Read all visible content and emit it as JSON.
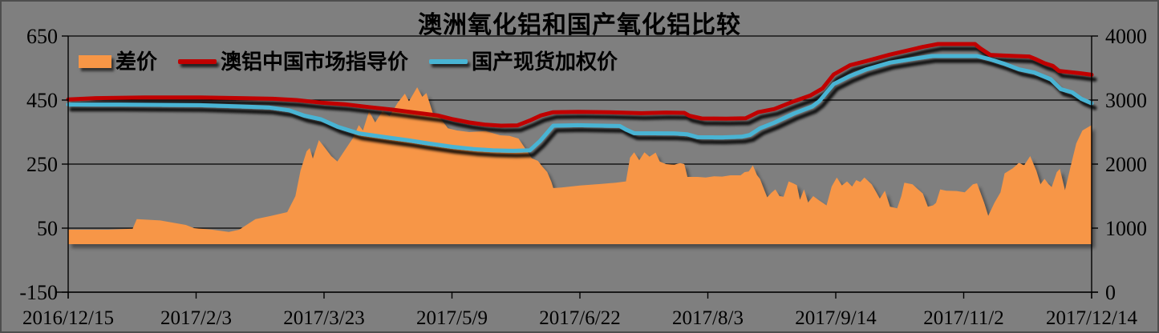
{
  "title": "澳洲氧化铝和国产氧化铝比较",
  "colors": {
    "background": "#7F7F7F",
    "border": "#4E4E4E",
    "gridline": "#000000",
    "axis": "#000000",
    "text": "#000000",
    "spread_area": "#F79646",
    "au_guide_line": "#C00000",
    "domestic_line": "#48B4D4"
  },
  "chart_data": {
    "type": "area+line combo",
    "title": "澳洲氧化铝和国产氧化铝比较",
    "grid": true,
    "legend_position": "top-left",
    "x_labels": [
      "2016/12/15",
      "2017/2/3",
      "2017/3/23",
      "2017/5/9",
      "2017/6/22",
      "2017/8/3",
      "2017/9/14",
      "2017/11/2",
      "2017/12/14"
    ],
    "left_axis": {
      "min": -150,
      "max": 650,
      "ticks": [
        650,
        450,
        250,
        50,
        -150
      ]
    },
    "right_axis": {
      "min": 0,
      "max": 4000,
      "ticks": [
        4000,
        3000,
        2000,
        1000,
        0
      ]
    },
    "series": [
      {
        "name": "差价",
        "id": "spread",
        "type": "area",
        "axis": "left",
        "color": "#F79646",
        "points": [
          [
            0,
            45
          ],
          [
            3.9,
            45
          ],
          [
            6.3,
            48
          ],
          [
            6.7,
            78
          ],
          [
            9.0,
            74
          ],
          [
            11.5,
            60
          ],
          [
            12.3,
            50
          ],
          [
            14.1,
            45
          ],
          [
            15.7,
            38
          ],
          [
            16.7,
            45
          ],
          [
            18.3,
            78
          ],
          [
            19.8,
            88
          ],
          [
            21.4,
            100
          ],
          [
            22.2,
            150
          ],
          [
            22.7,
            230
          ],
          [
            23.3,
            290
          ],
          [
            23.6,
            300
          ],
          [
            23.9,
            267
          ],
          [
            24.5,
            325
          ],
          [
            25.1,
            300
          ],
          [
            25.7,
            275
          ],
          [
            26.3,
            258
          ],
          [
            27.0,
            292
          ],
          [
            27.8,
            330
          ],
          [
            28.4,
            372
          ],
          [
            28.8,
            355
          ],
          [
            29.4,
            415
          ],
          [
            30.0,
            380
          ],
          [
            30.7,
            415
          ],
          [
            31.4,
            400
          ],
          [
            32.2,
            442
          ],
          [
            32.9,
            470
          ],
          [
            33.3,
            446
          ],
          [
            34.1,
            490
          ],
          [
            34.6,
            460
          ],
          [
            35.0,
            472
          ],
          [
            35.7,
            402
          ],
          [
            36.4,
            392
          ],
          [
            37.1,
            362
          ],
          [
            38.0,
            355
          ],
          [
            39.2,
            350
          ],
          [
            40.8,
            353
          ],
          [
            42.2,
            340
          ],
          [
            43.1,
            338
          ],
          [
            44.0,
            330
          ],
          [
            45.3,
            268
          ],
          [
            45.9,
            260
          ],
          [
            46.3,
            243
          ],
          [
            46.8,
            225
          ],
          [
            47.2,
            195
          ],
          [
            47.4,
            175
          ],
          [
            48.2,
            177
          ],
          [
            50.0,
            183
          ],
          [
            52.1,
            188
          ],
          [
            53.5,
            192
          ],
          [
            54.5,
            196
          ],
          [
            54.9,
            270
          ],
          [
            55.3,
            287
          ],
          [
            55.8,
            262
          ],
          [
            56.3,
            287
          ],
          [
            56.8,
            273
          ],
          [
            57.4,
            286
          ],
          [
            57.8,
            258
          ],
          [
            58.4,
            250
          ],
          [
            59.2,
            248
          ],
          [
            59.8,
            253
          ],
          [
            60.2,
            250
          ],
          [
            60.5,
            210
          ],
          [
            61.5,
            210
          ],
          [
            62.3,
            208
          ],
          [
            63.1,
            212
          ],
          [
            63.9,
            211
          ],
          [
            64.7,
            215
          ],
          [
            65.7,
            215
          ],
          [
            66.1,
            225
          ],
          [
            66.5,
            227
          ],
          [
            66.9,
            246
          ],
          [
            67.3,
            216
          ],
          [
            67.6,
            203
          ],
          [
            68.0,
            170
          ],
          [
            68.3,
            146
          ],
          [
            68.7,
            160
          ],
          [
            69.1,
            171
          ],
          [
            69.5,
            150
          ],
          [
            69.9,
            148
          ],
          [
            70.4,
            196
          ],
          [
            70.9,
            189
          ],
          [
            71.2,
            184
          ],
          [
            71.5,
            138
          ],
          [
            71.9,
            171
          ],
          [
            72.3,
            130
          ],
          [
            72.8,
            150
          ],
          [
            73.4,
            136
          ],
          [
            74.1,
            121
          ],
          [
            74.6,
            180
          ],
          [
            75.1,
            208
          ],
          [
            75.6,
            183
          ],
          [
            76.1,
            196
          ],
          [
            76.6,
            180
          ],
          [
            77.0,
            200
          ],
          [
            77.4,
            194
          ],
          [
            77.8,
            208
          ],
          [
            78.5,
            187
          ],
          [
            78.9,
            165
          ],
          [
            79.3,
            142
          ],
          [
            79.8,
            167
          ],
          [
            80.3,
            117
          ],
          [
            81.0,
            112
          ],
          [
            81.4,
            150
          ],
          [
            81.7,
            192
          ],
          [
            82.5,
            187
          ],
          [
            82.9,
            175
          ],
          [
            83.5,
            158
          ],
          [
            84.0,
            117
          ],
          [
            84.5,
            121
          ],
          [
            84.8,
            129
          ],
          [
            85.2,
            171
          ],
          [
            85.8,
            167
          ],
          [
            86.8,
            166
          ],
          [
            87.6,
            162
          ],
          [
            88.4,
            187
          ],
          [
            88.8,
            190
          ],
          [
            89.5,
            129
          ],
          [
            89.9,
            88
          ],
          [
            90.5,
            129
          ],
          [
            91.1,
            162
          ],
          [
            91.5,
            221
          ],
          [
            92.3,
            237
          ],
          [
            92.9,
            254
          ],
          [
            93.4,
            246
          ],
          [
            94.0,
            275
          ],
          [
            94.6,
            229
          ],
          [
            95.0,
            187
          ],
          [
            95.4,
            204
          ],
          [
            95.8,
            187
          ],
          [
            96.1,
            178
          ],
          [
            96.6,
            225
          ],
          [
            96.9,
            235
          ],
          [
            97.4,
            168
          ],
          [
            98.0,
            250
          ],
          [
            98.5,
            315
          ],
          [
            99.1,
            355
          ],
          [
            100,
            372
          ]
        ]
      },
      {
        "name": "澳铝中国市场指导价",
        "id": "au-guide",
        "type": "line",
        "axis": "right",
        "color": "#C00000",
        "points": [
          [
            0,
            3010
          ],
          [
            2.7,
            3030
          ],
          [
            7.5,
            3040
          ],
          [
            12.9,
            3040
          ],
          [
            16.9,
            3030
          ],
          [
            20.0,
            3020
          ],
          [
            22.3,
            3000
          ],
          [
            24.7,
            2960
          ],
          [
            27.0,
            2935
          ],
          [
            29.4,
            2890
          ],
          [
            31.7,
            2850
          ],
          [
            34.1,
            2800
          ],
          [
            36.1,
            2760
          ],
          [
            37.6,
            2700
          ],
          [
            39.2,
            2650
          ],
          [
            40.8,
            2615
          ],
          [
            42.3,
            2600
          ],
          [
            43.9,
            2605
          ],
          [
            45.1,
            2680
          ],
          [
            46.2,
            2760
          ],
          [
            47.4,
            2810
          ],
          [
            49.8,
            2815
          ],
          [
            52.9,
            2810
          ],
          [
            56.0,
            2795
          ],
          [
            58.4,
            2805
          ],
          [
            60.2,
            2800
          ],
          [
            60.7,
            2755
          ],
          [
            61.9,
            2712
          ],
          [
            64.3,
            2710
          ],
          [
            66.2,
            2715
          ],
          [
            67.4,
            2810
          ],
          [
            69.0,
            2860
          ],
          [
            70.9,
            2980
          ],
          [
            72.5,
            3070
          ],
          [
            73.7,
            3180
          ],
          [
            74.8,
            3400
          ],
          [
            76.4,
            3545
          ],
          [
            78.0,
            3610
          ],
          [
            80.3,
            3710
          ],
          [
            81.9,
            3770
          ],
          [
            83.5,
            3830
          ],
          [
            85.0,
            3875
          ],
          [
            88.6,
            3875
          ],
          [
            89.1,
            3810
          ],
          [
            90.1,
            3705
          ],
          [
            92.1,
            3690
          ],
          [
            93.9,
            3680
          ],
          [
            94.6,
            3635
          ],
          [
            95.4,
            3575
          ],
          [
            96.2,
            3535
          ],
          [
            96.8,
            3455
          ],
          [
            97.7,
            3440
          ],
          [
            98.8,
            3420
          ],
          [
            100,
            3395
          ]
        ]
      },
      {
        "name": "国产现货加权价",
        "id": "domestic",
        "type": "line",
        "axis": "right",
        "color": "#48B4D4",
        "points": [
          [
            0,
            2930
          ],
          [
            5.1,
            2930
          ],
          [
            12.9,
            2920
          ],
          [
            16.9,
            2900
          ],
          [
            19.6,
            2885
          ],
          [
            21.6,
            2840
          ],
          [
            23.1,
            2755
          ],
          [
            24.7,
            2700
          ],
          [
            26.3,
            2585
          ],
          [
            28.4,
            2480
          ],
          [
            31.0,
            2420
          ],
          [
            33.3,
            2370
          ],
          [
            34.9,
            2330
          ],
          [
            37.5,
            2270
          ],
          [
            39.6,
            2235
          ],
          [
            41.5,
            2215
          ],
          [
            43.5,
            2208
          ],
          [
            45.1,
            2215
          ],
          [
            46.1,
            2360
          ],
          [
            47.4,
            2600
          ],
          [
            49.8,
            2608
          ],
          [
            53.9,
            2595
          ],
          [
            54.5,
            2540
          ],
          [
            55.3,
            2482
          ],
          [
            59.2,
            2480
          ],
          [
            60.5,
            2465
          ],
          [
            61.5,
            2420
          ],
          [
            63.9,
            2418
          ],
          [
            65.8,
            2428
          ],
          [
            66.6,
            2455
          ],
          [
            67.6,
            2560
          ],
          [
            69.0,
            2648
          ],
          [
            70.9,
            2790
          ],
          [
            72.7,
            2900
          ],
          [
            73.4,
            2985
          ],
          [
            74.8,
            3250
          ],
          [
            76.4,
            3378
          ],
          [
            78.0,
            3480
          ],
          [
            80.3,
            3585
          ],
          [
            82.7,
            3648
          ],
          [
            84.4,
            3688
          ],
          [
            88.8,
            3688
          ],
          [
            89.9,
            3645
          ],
          [
            91.5,
            3565
          ],
          [
            92.9,
            3480
          ],
          [
            94.4,
            3430
          ],
          [
            96.0,
            3325
          ],
          [
            97.0,
            3170
          ],
          [
            98.1,
            3120
          ],
          [
            99.0,
            3020
          ],
          [
            100,
            2950
          ]
        ]
      }
    ]
  }
}
